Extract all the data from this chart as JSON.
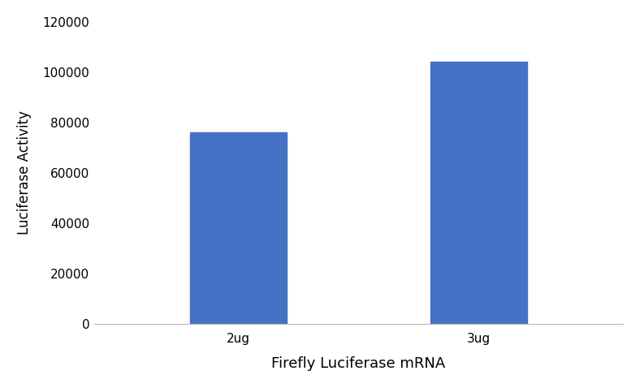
{
  "categories": [
    "2ug",
    "3ug"
  ],
  "values": [
    76000,
    104000
  ],
  "bar_color": "#4472C4",
  "bar_width": 0.4,
  "xlabel": "Firefly Luciferase mRNA",
  "ylabel": "Luciferase Activity",
  "ylim": [
    0,
    120000
  ],
  "yticks": [
    0,
    20000,
    40000,
    60000,
    80000,
    100000,
    120000
  ],
  "xlabel_fontsize": 13,
  "ylabel_fontsize": 12,
  "tick_fontsize": 11,
  "background_color": "#ffffff",
  "figure_bg": "#ffffff",
  "xlim": [
    -0.6,
    1.6
  ]
}
